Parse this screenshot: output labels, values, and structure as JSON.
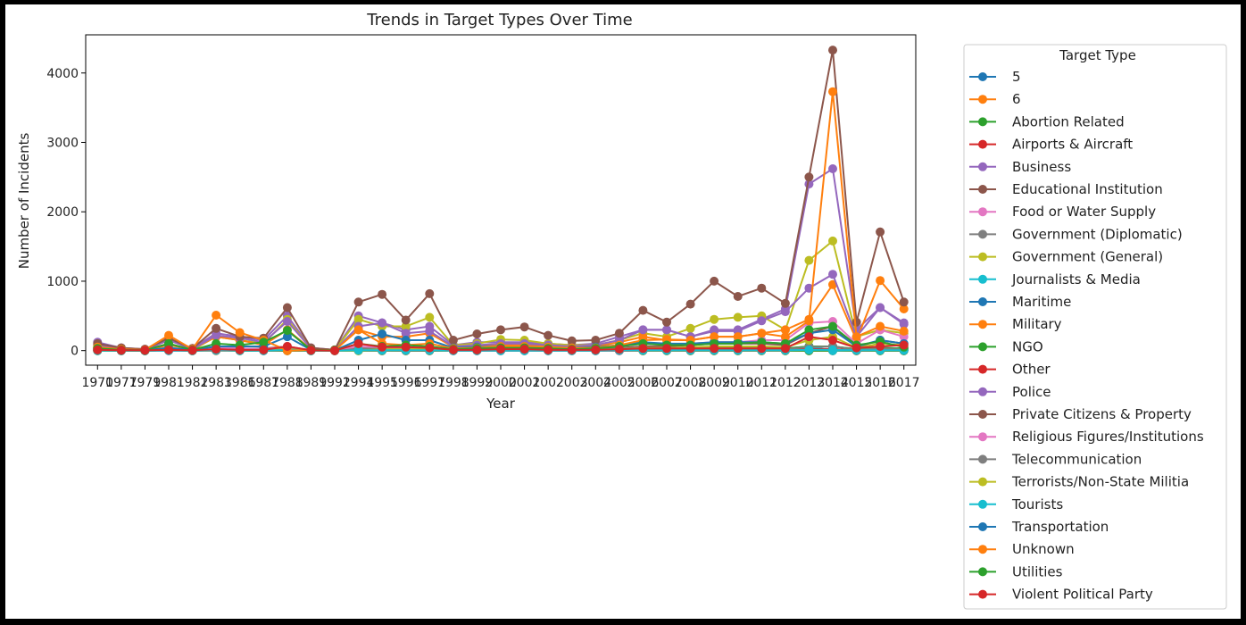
{
  "chart_data": {
    "type": "line",
    "title": "Trends in Target Types Over Time",
    "xlabel": "Year",
    "ylabel": "Number of Incidents",
    "x": [
      "1970",
      "1977",
      "1979",
      "1981",
      "1982",
      "1983",
      "1986",
      "1987",
      "1988",
      "1989",
      "1992",
      "1994",
      "1995",
      "1996",
      "1997",
      "1998",
      "1999",
      "2000",
      "2001",
      "2002",
      "2003",
      "2004",
      "2005",
      "2006",
      "2007",
      "2008",
      "2009",
      "2010",
      "2011",
      "2012",
      "2013",
      "2014",
      "2015",
      "2016",
      "2017"
    ],
    "yticks": [
      0,
      1000,
      2000,
      3000,
      4000
    ],
    "ylim": [
      -210,
      4550
    ],
    "grid": false,
    "legend": {
      "title": "Target Type",
      "placement": "outside-right"
    },
    "series": [
      {
        "name": "5",
        "color": "#1f77b4",
        "values": [
          5,
          0,
          0,
          0,
          0,
          0,
          0,
          0,
          0,
          0,
          0,
          0,
          0,
          0,
          0,
          0,
          0,
          0,
          0,
          0,
          0,
          0,
          0,
          0,
          0,
          0,
          0,
          0,
          0,
          0,
          0,
          0,
          0,
          0,
          0
        ]
      },
      {
        "name": "6",
        "color": "#ff7f0e",
        "values": [
          0,
          0,
          0,
          0,
          0,
          0,
          0,
          0,
          0,
          0,
          0,
          0,
          0,
          0,
          0,
          0,
          0,
          0,
          0,
          0,
          0,
          0,
          0,
          0,
          0,
          0,
          0,
          0,
          0,
          0,
          0,
          0,
          0,
          0,
          0
        ]
      },
      {
        "name": "Abortion Related",
        "color": "#2ca02c",
        "values": [
          0,
          0,
          0,
          10,
          0,
          5,
          0,
          0,
          0,
          0,
          0,
          0,
          0,
          0,
          0,
          0,
          0,
          0,
          0,
          0,
          0,
          0,
          0,
          0,
          0,
          0,
          0,
          0,
          0,
          0,
          0,
          0,
          0,
          0,
          0
        ]
      },
      {
        "name": "Airports & Aircraft",
        "color": "#d62728",
        "values": [
          30,
          10,
          10,
          20,
          5,
          15,
          10,
          10,
          40,
          5,
          5,
          40,
          30,
          30,
          20,
          10,
          10,
          10,
          10,
          10,
          5,
          10,
          10,
          20,
          20,
          20,
          30,
          30,
          30,
          20,
          50,
          60,
          20,
          30,
          30
        ]
      },
      {
        "name": "Business",
        "color": "#9467bd",
        "values": [
          120,
          40,
          20,
          160,
          30,
          250,
          200,
          150,
          500,
          40,
          10,
          500,
          400,
          300,
          350,
          80,
          120,
          120,
          120,
          100,
          80,
          100,
          200,
          300,
          300,
          200,
          300,
          300,
          450,
          600,
          2400,
          2620,
          300,
          620,
          400
        ]
      },
      {
        "name": "Educational Institution",
        "color": "#8c564b",
        "values": [
          30,
          10,
          5,
          20,
          5,
          40,
          20,
          30,
          60,
          5,
          5,
          40,
          40,
          30,
          30,
          20,
          20,
          20,
          20,
          20,
          20,
          30,
          40,
          60,
          60,
          80,
          100,
          100,
          100,
          80,
          250,
          350,
          50,
          150,
          100
        ]
      },
      {
        "name": "Food or Water Supply",
        "color": "#e377c2",
        "values": [
          0,
          0,
          0,
          0,
          0,
          5,
          5,
          0,
          10,
          0,
          0,
          5,
          5,
          5,
          5,
          0,
          0,
          0,
          0,
          0,
          0,
          0,
          0,
          5,
          5,
          5,
          5,
          5,
          5,
          5,
          20,
          20,
          5,
          10,
          10
        ]
      },
      {
        "name": "Government (Diplomatic)",
        "color": "#7f7f7f",
        "values": [
          40,
          15,
          10,
          40,
          10,
          40,
          30,
          20,
          40,
          10,
          5,
          40,
          30,
          30,
          30,
          20,
          20,
          20,
          20,
          20,
          20,
          20,
          30,
          40,
          40,
          40,
          40,
          40,
          40,
          30,
          60,
          60,
          20,
          40,
          30
        ]
      },
      {
        "name": "Government (General)",
        "color": "#bcbd22",
        "values": [
          60,
          20,
          10,
          100,
          10,
          200,
          150,
          100,
          450,
          30,
          10,
          450,
          350,
          350,
          480,
          80,
          100,
          160,
          150,
          100,
          80,
          80,
          150,
          250,
          200,
          320,
          450,
          480,
          500,
          300,
          1300,
          1580,
          200,
          300,
          250
        ]
      },
      {
        "name": "Journalists & Media",
        "color": "#17becf",
        "values": [
          5,
          0,
          0,
          10,
          0,
          20,
          10,
          10,
          30,
          0,
          0,
          20,
          20,
          20,
          20,
          10,
          10,
          10,
          10,
          10,
          10,
          10,
          20,
          30,
          30,
          30,
          30,
          30,
          30,
          20,
          60,
          0,
          10,
          20,
          10
        ]
      },
      {
        "name": "Maritime",
        "color": "#1f77b4",
        "values": [
          5,
          0,
          0,
          5,
          0,
          10,
          5,
          5,
          10,
          0,
          0,
          10,
          10,
          5,
          5,
          5,
          5,
          5,
          5,
          5,
          5,
          5,
          5,
          10,
          10,
          10,
          10,
          10,
          10,
          10,
          20,
          20,
          5,
          10,
          5
        ]
      },
      {
        "name": "Military",
        "color": "#ff7f0e",
        "values": [
          40,
          20,
          10,
          80,
          20,
          200,
          150,
          80,
          300,
          20,
          10,
          300,
          200,
          200,
          250,
          50,
          60,
          80,
          80,
          60,
          50,
          60,
          120,
          200,
          150,
          150,
          200,
          200,
          250,
          300,
          450,
          950,
          150,
          1010,
          600
        ]
      },
      {
        "name": "NGO",
        "color": "#2ca02c",
        "values": [
          0,
          0,
          0,
          5,
          0,
          10,
          5,
          5,
          20,
          0,
          0,
          20,
          20,
          20,
          20,
          10,
          10,
          10,
          10,
          10,
          10,
          10,
          20,
          30,
          30,
          30,
          30,
          30,
          30,
          30,
          60,
          60,
          20,
          40,
          30
        ]
      },
      {
        "name": "Other",
        "color": "#d62728",
        "values": [
          5,
          0,
          0,
          5,
          0,
          10,
          5,
          5,
          10,
          0,
          0,
          10,
          10,
          5,
          5,
          5,
          5,
          5,
          5,
          5,
          5,
          5,
          5,
          10,
          10,
          10,
          10,
          10,
          10,
          10,
          20,
          20,
          5,
          10,
          10
        ]
      },
      {
        "name": "Police",
        "color": "#9467bd",
        "values": [
          80,
          30,
          10,
          150,
          20,
          220,
          180,
          120,
          420,
          30,
          5,
          350,
          400,
          250,
          280,
          60,
          80,
          100,
          100,
          80,
          60,
          80,
          150,
          300,
          300,
          200,
          280,
          280,
          430,
          560,
          900,
          1100,
          200,
          620,
          380
        ]
      },
      {
        "name": "Private Citizens & Property",
        "color": "#8c564b",
        "values": [
          100,
          40,
          20,
          180,
          30,
          320,
          200,
          180,
          620,
          40,
          10,
          700,
          810,
          440,
          820,
          150,
          240,
          300,
          340,
          220,
          140,
          150,
          250,
          580,
          410,
          670,
          1000,
          780,
          900,
          680,
          2500,
          4330,
          410,
          1710,
          700
        ]
      },
      {
        "name": "Religious Figures/Institutions",
        "color": "#e377c2",
        "values": [
          10,
          5,
          5,
          20,
          5,
          40,
          30,
          20,
          60,
          5,
          5,
          60,
          50,
          40,
          50,
          20,
          30,
          30,
          30,
          30,
          30,
          40,
          60,
          100,
          80,
          100,
          120,
          120,
          150,
          150,
          400,
          420,
          100,
          300,
          200
        ]
      },
      {
        "name": "Telecommunication",
        "color": "#7f7f7f",
        "values": [
          5,
          0,
          0,
          10,
          0,
          20,
          10,
          10,
          30,
          0,
          0,
          20,
          20,
          20,
          20,
          10,
          10,
          10,
          10,
          10,
          10,
          10,
          20,
          30,
          30,
          30,
          30,
          30,
          30,
          20,
          50,
          60,
          10,
          30,
          20
        ]
      },
      {
        "name": "Terrorists/Non-State Militia",
        "color": "#bcbd22",
        "values": [
          0,
          0,
          0,
          5,
          0,
          10,
          5,
          5,
          20,
          0,
          0,
          0,
          20,
          20,
          20,
          10,
          10,
          10,
          10,
          10,
          10,
          10,
          20,
          40,
          40,
          50,
          60,
          60,
          60,
          50,
          150,
          200,
          40,
          100,
          80
        ]
      },
      {
        "name": "Tourists",
        "color": "#17becf",
        "values": [
          0,
          0,
          0,
          0,
          0,
          5,
          0,
          0,
          10,
          0,
          0,
          5,
          5,
          5,
          5,
          0,
          0,
          0,
          0,
          0,
          0,
          0,
          5,
          5,
          5,
          5,
          5,
          5,
          5,
          5,
          10,
          10,
          5,
          5,
          5
        ]
      },
      {
        "name": "Transportation",
        "color": "#1f77b4",
        "values": [
          20,
          10,
          5,
          40,
          10,
          60,
          60,
          60,
          200,
          10,
          5,
          150,
          240,
          150,
          150,
          40,
          50,
          60,
          60,
          50,
          40,
          50,
          80,
          120,
          100,
          100,
          120,
          120,
          120,
          100,
          250,
          300,
          60,
          150,
          100
        ]
      },
      {
        "name": "Unknown",
        "color": "#ff7f0e",
        "values": [
          50,
          20,
          10,
          220,
          20,
          510,
          260,
          150,
          0,
          10,
          5,
          300,
          100,
          80,
          100,
          30,
          40,
          60,
          60,
          50,
          40,
          40,
          80,
          150,
          160,
          150,
          200,
          200,
          250,
          200,
          430,
          3730,
          200,
          350,
          280
        ]
      },
      {
        "name": "Utilities",
        "color": "#2ca02c",
        "values": [
          30,
          10,
          5,
          100,
          10,
          100,
          80,
          120,
          290,
          10,
          5,
          100,
          60,
          80,
          60,
          20,
          30,
          40,
          40,
          30,
          20,
          30,
          60,
          100,
          80,
          80,
          100,
          100,
          120,
          100,
          300,
          350,
          80,
          130,
          50
        ]
      },
      {
        "name": "Violent Political Party",
        "color": "#d62728",
        "values": [
          10,
          5,
          5,
          10,
          5,
          20,
          10,
          10,
          60,
          5,
          0,
          100,
          50,
          50,
          40,
          10,
          10,
          20,
          20,
          10,
          10,
          10,
          20,
          30,
          30,
          30,
          30,
          30,
          30,
          30,
          200,
          150,
          40,
          60,
          80
        ]
      }
    ]
  }
}
